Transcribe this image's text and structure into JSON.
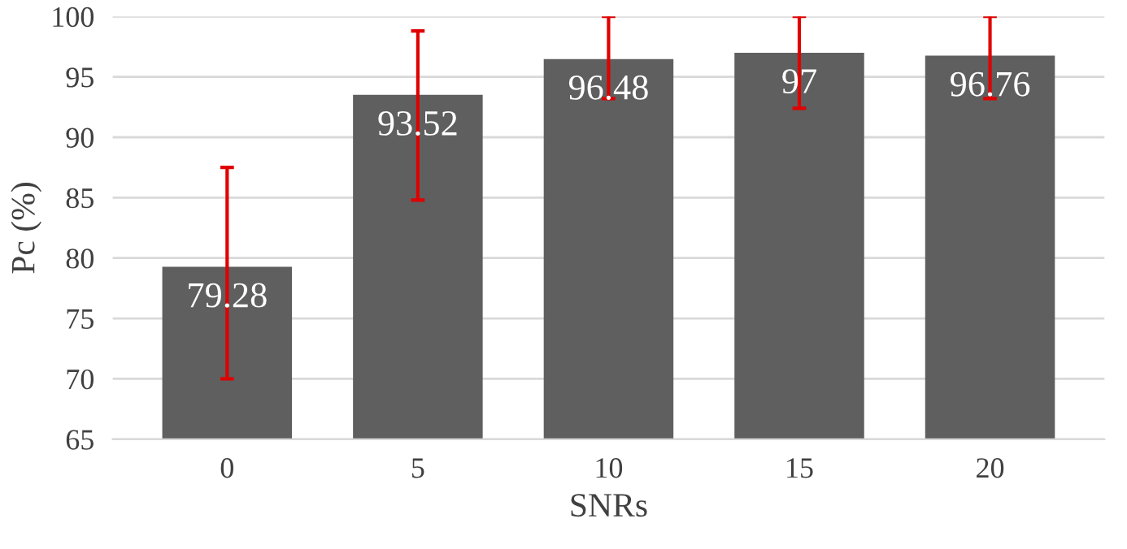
{
  "chart_data": {
    "type": "bar",
    "xlabel": "SNRs",
    "ylabel": "Pc (%)",
    "categories": [
      "0",
      "5",
      "10",
      "15",
      "20"
    ],
    "values": [
      79.28,
      93.52,
      96.48,
      97,
      96.76
    ],
    "errors": [
      [
        70,
        87.5
      ],
      [
        84.8,
        98.8
      ],
      [
        93.2,
        100
      ],
      [
        92.4,
        100
      ],
      [
        93.2,
        100
      ]
    ],
    "color": "#5f5f5f",
    "ylim": [
      65,
      100
    ],
    "yticks": [
      65,
      70,
      75,
      80,
      85,
      90,
      95,
      100
    ],
    "grid": "y",
    "data_labels": true
  }
}
